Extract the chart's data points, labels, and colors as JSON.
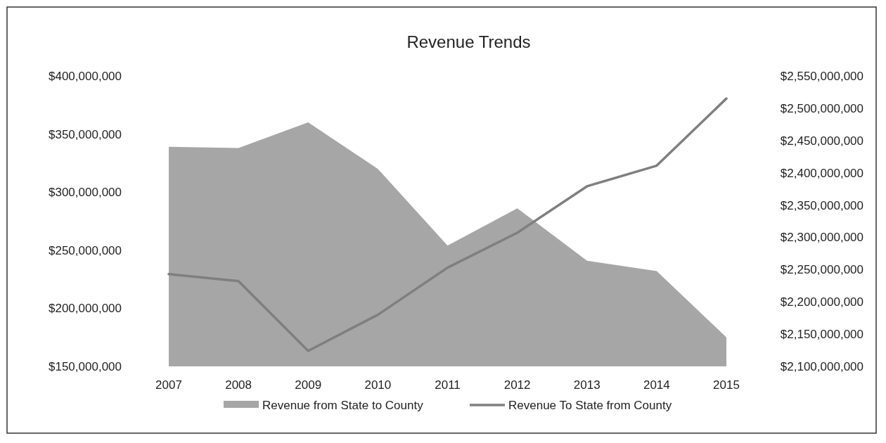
{
  "chart_data": {
    "type": "area",
    "title": "Revenue Trends",
    "categories": [
      "2007",
      "2008",
      "2009",
      "2010",
      "2011",
      "2012",
      "2013",
      "2014",
      "2015"
    ],
    "series": [
      {
        "name": "Revenue from State to County",
        "color": "#a6a6a6",
        "values": [
          339000000,
          338000000,
          360000000,
          320000000,
          254000000,
          286000000,
          241000000,
          232000000,
          175000000
        ]
      },
      {
        "name": "Revenue To State from County",
        "type": "line",
        "axis": "y2",
        "color": "#7f7f7f",
        "values": [
          2243000000,
          2232000000,
          2124000000,
          2180000000,
          2253000000,
          2307000000,
          2379000000,
          2411000000,
          2515000000
        ]
      }
    ],
    "ylim": [
      150000000,
      400000000
    ],
    "yticks": [
      {
        "value": 150000000,
        "label": "$150,000,000"
      },
      {
        "value": 200000000,
        "label": "$200,000,000"
      },
      {
        "value": 250000000,
        "label": "$250,000,000"
      },
      {
        "value": 300000000,
        "label": "$300,000,000"
      },
      {
        "value": 350000000,
        "label": "$350,000,000"
      },
      {
        "value": 400000000,
        "label": "$400,000,000"
      }
    ],
    "y2lim": [
      2100000000,
      2550000000
    ],
    "y2ticks": [
      {
        "value": 2100000000,
        "label": "$2,100,000,000"
      },
      {
        "value": 2150000000,
        "label": "$2,150,000,000"
      },
      {
        "value": 2200000000,
        "label": "$2,200,000,000"
      },
      {
        "value": 2250000000,
        "label": "$2,250,000,000"
      },
      {
        "value": 2300000000,
        "label": "$2,300,000,000"
      },
      {
        "value": 2350000000,
        "label": "$2,350,000,000"
      },
      {
        "value": 2400000000,
        "label": "$2,400,000,000"
      },
      {
        "value": 2450000000,
        "label": "$2,450,000,000"
      },
      {
        "value": 2500000000,
        "label": "$2,500,000,000"
      },
      {
        "value": 2550000000,
        "label": "$2,550,000,000"
      }
    ],
    "legend": "bottom"
  }
}
